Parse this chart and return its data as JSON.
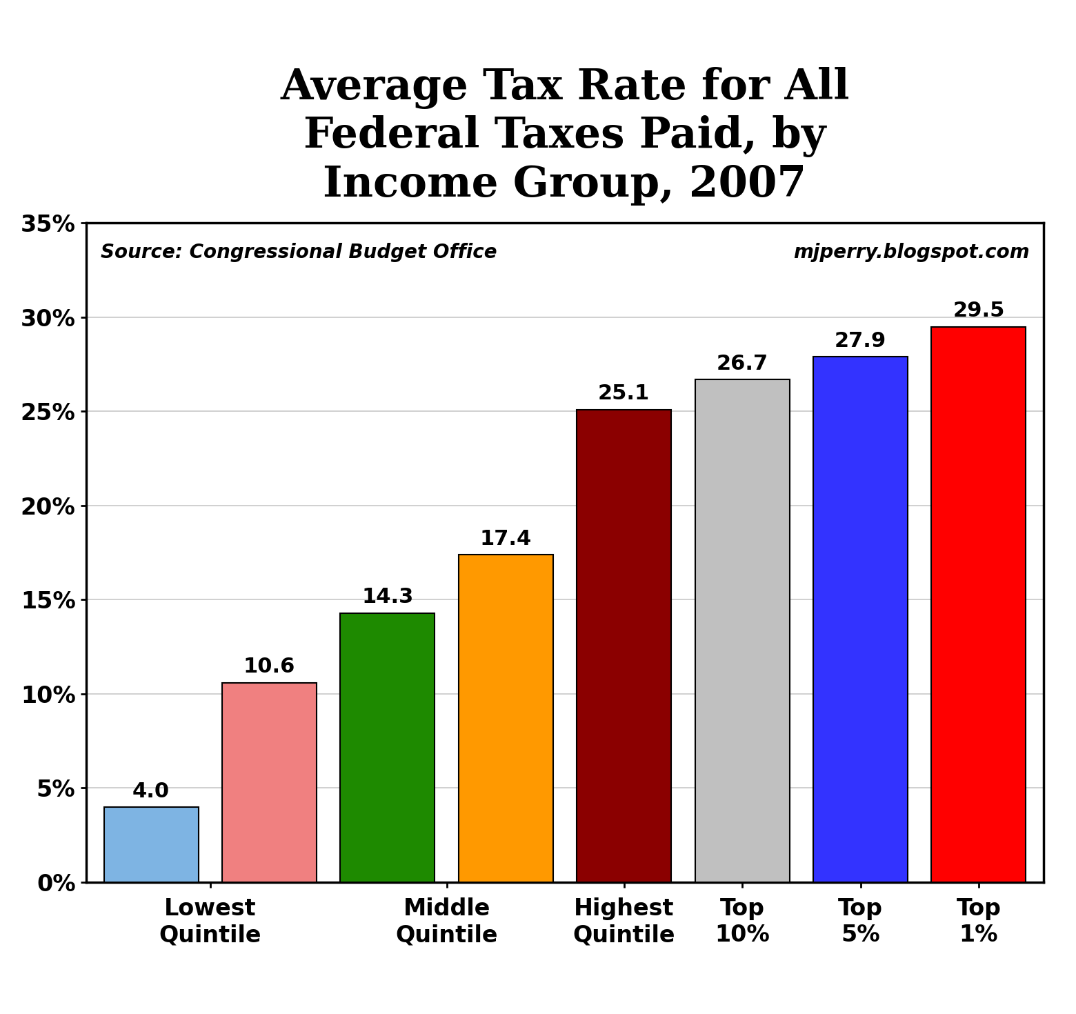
{
  "title": "Average Tax Rate for All\nFederal Taxes Paid, by\nIncome Group, 2007",
  "values": [
    4.0,
    10.6,
    14.3,
    17.4,
    25.1,
    26.7,
    27.9,
    29.5
  ],
  "bar_colors": [
    "#7EB4E3",
    "#F08080",
    "#1E8A00",
    "#FF9900",
    "#8B0000",
    "#C0C0C0",
    "#3333FF",
    "#FF0000"
  ],
  "x_positions": [
    0,
    1,
    2,
    3,
    4,
    5,
    6,
    7
  ],
  "x_tick_positions": [
    0.5,
    2.5,
    4,
    5,
    6,
    7
  ],
  "x_tick_labels": [
    "Lowest\nQuintile",
    "Middle\nQuintile",
    "Highest\nQuintile",
    "Top\n10%",
    "Top\n5%",
    "Top\n1%"
  ],
  "source_text": "Source: Congressional Budget Office",
  "blog_text": "mjperry.blogspot.com",
  "ylim": [
    0,
    35
  ],
  "yticks": [
    0,
    5,
    10,
    15,
    20,
    25,
    30,
    35
  ],
  "ytick_labels": [
    "0%",
    "5%",
    "10%",
    "15%",
    "20%",
    "25%",
    "30%",
    "35%"
  ],
  "title_fontsize": 44,
  "label_fontsize": 24,
  "value_fontsize": 22,
  "axis_fontsize": 24,
  "source_fontsize": 20,
  "background_color": "#FFFFFF",
  "plot_bg_color": "#FFFFFF"
}
